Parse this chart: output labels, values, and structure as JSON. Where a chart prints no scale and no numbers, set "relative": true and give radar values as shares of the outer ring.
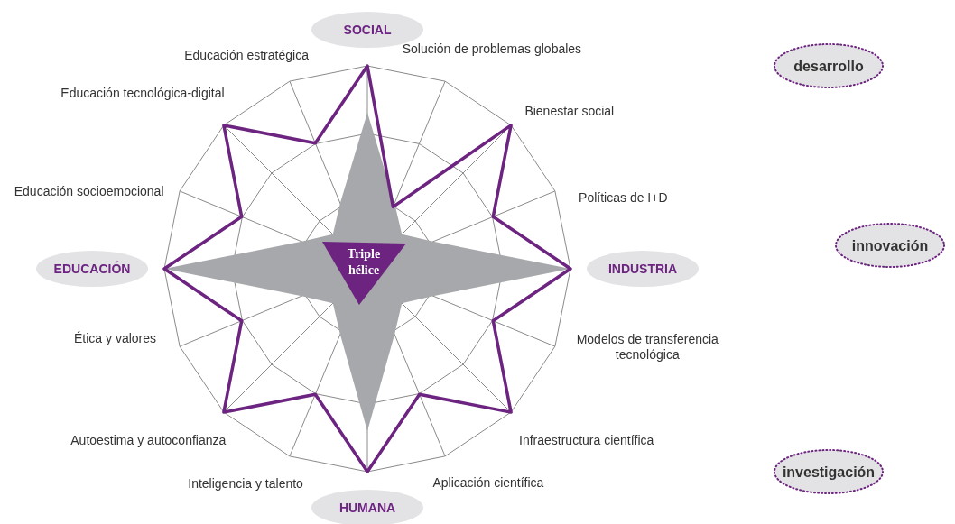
{
  "chart_data": {
    "type": "radar",
    "relative": true,
    "grid": true,
    "categories": [
      "SOCIAL",
      "Solución de problemas globales",
      "Bienestar social",
      "Políticas de I+D",
      "INDUSTRIA",
      "Modelos de transferencia tecnológica",
      "Infraestructura científica",
      "Aplicación científica",
      "HUMANA",
      "Inteligencia y talento",
      "Autoestima y autoconfianza",
      "Ética y valores",
      "EDUCACIÓN",
      "Educación socioemocional",
      "Educación tecnológica-digital",
      "Educación estratégica"
    ],
    "series": [
      {
        "type": "area",
        "color": "#a7a8ab",
        "values": [
          0.77,
          0.35,
          0.24,
          0.35,
          1,
          0.35,
          0.24,
          0.35,
          0.8,
          0.35,
          0.24,
          0.35,
          1,
          0.35,
          0.24,
          0.35
        ]
      },
      {
        "color": "#6c2480",
        "values": [
          1,
          0.33,
          1,
          0.67,
          1,
          0.67,
          1,
          0.67,
          1,
          0.67,
          1,
          0.67,
          1,
          0.67,
          1,
          0.67
        ]
      }
    ],
    "annotations": [
      "Triple hélice",
      "desarrollo",
      "innovación",
      "investigación"
    ]
  }
}
